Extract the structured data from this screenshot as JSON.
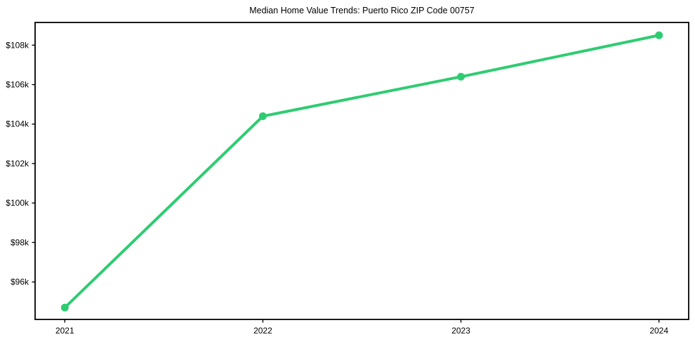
{
  "chart_data": {
    "type": "line",
    "title": "Median Home Value Trends: Puerto Rico ZIP Code 00757",
    "xlabel": "",
    "ylabel": "",
    "categories": [
      "2021",
      "2022",
      "2023",
      "2024"
    ],
    "values": [
      94700,
      104400,
      106400,
      108500
    ],
    "ytick_values": [
      96000,
      98000,
      100000,
      102000,
      104000,
      106000,
      108000
    ],
    "ytick_labels": [
      "$96k",
      "$98k",
      "$100k",
      "$102k",
      "$104k",
      "$106k",
      "$108k"
    ],
    "ylim": [
      94100,
      109150
    ],
    "x_index_lim": [
      -0.15,
      3.15
    ],
    "grid": false,
    "legend": "none",
    "line_color": "#2ecc71",
    "marker_color": "#2ecc71",
    "axis_color": "#000000",
    "text_color": "#000000",
    "background_color": "#ffffff"
  }
}
